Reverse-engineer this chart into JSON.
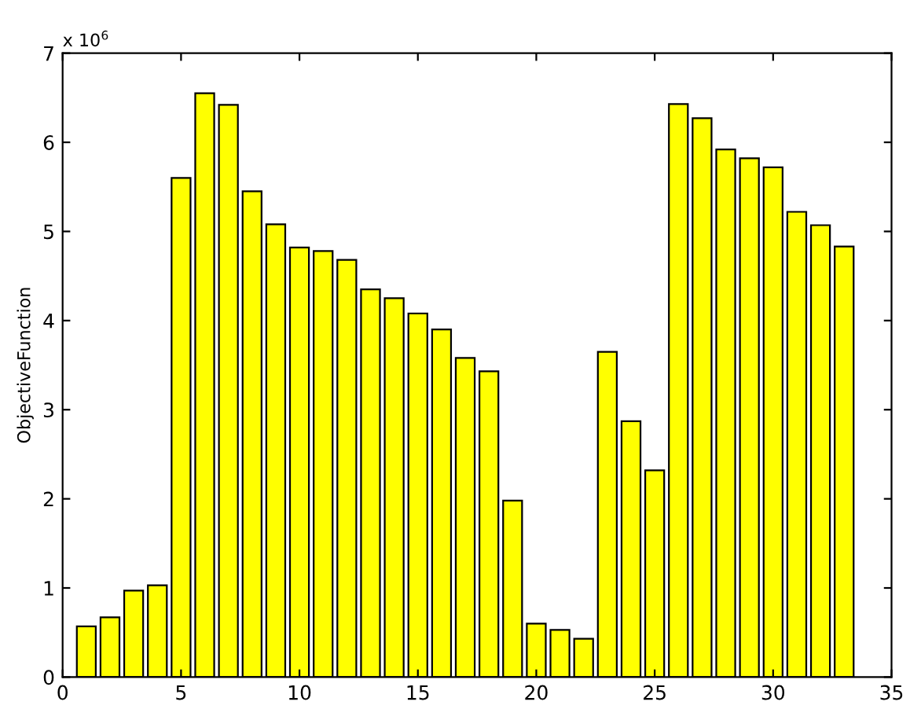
{
  "chart_data": {
    "type": "bar",
    "ylabel": "ObjectiveFunction",
    "annotations": [
      "x 10$^{6}$"
    ],
    "x": [
      1,
      2,
      3,
      4,
      5,
      6,
      7,
      8,
      9,
      10,
      11,
      12,
      13,
      14,
      15,
      16,
      17,
      18,
      19,
      20,
      21,
      22,
      23,
      24,
      25,
      26,
      27,
      28,
      29,
      30,
      31,
      32,
      33
    ],
    "values": [
      0.57,
      0.67,
      0.97,
      1.03,
      5.6,
      6.55,
      6.42,
      5.45,
      5.08,
      4.82,
      4.78,
      4.68,
      4.35,
      4.25,
      4.08,
      3.9,
      3.58,
      3.43,
      1.98,
      0.6,
      0.53,
      0.43,
      3.65,
      2.87,
      2.32,
      6.43,
      6.27,
      5.92,
      5.82,
      5.72,
      5.22,
      5.07,
      4.83
    ],
    "color": "#ffff00",
    "xlim": [
      0,
      35
    ],
    "xticks": [
      0,
      5,
      10,
      15,
      20,
      25,
      30,
      35
    ],
    "ylim": [
      0,
      7
    ],
    "yticks": [
      0,
      1,
      2,
      3,
      4,
      5,
      6,
      7
    ],
    "grid": false,
    "legend": false
  }
}
